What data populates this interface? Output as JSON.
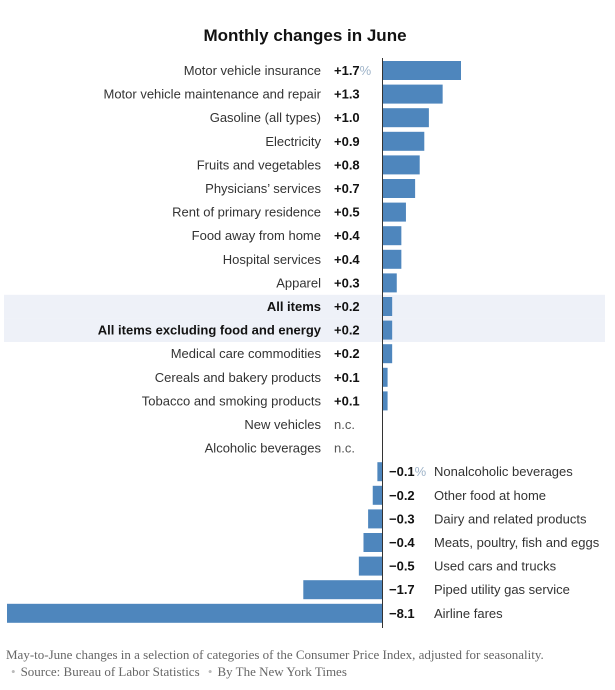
{
  "chart_data": {
    "type": "bar",
    "orientation": "horizontal",
    "title": "Monthly changes in June",
    "unit_suffix": "%",
    "bar_color": "#4e86bd",
    "highlight_color": "#eef1f8",
    "rows": [
      {
        "label": "Motor vehicle insurance",
        "value": 1.7,
        "display": "+1.7",
        "bold": false,
        "highlight": false
      },
      {
        "label": "Motor vehicle maintenance and repair",
        "value": 1.3,
        "display": "+1.3",
        "bold": false,
        "highlight": false
      },
      {
        "label": "Gasoline (all types)",
        "value": 1.0,
        "display": "+1.0",
        "bold": false,
        "highlight": false
      },
      {
        "label": "Electricity",
        "value": 0.9,
        "display": "+0.9",
        "bold": false,
        "highlight": false
      },
      {
        "label": "Fruits and vegetables",
        "value": 0.8,
        "display": "+0.8",
        "bold": false,
        "highlight": false
      },
      {
        "label": "Physicians’ services",
        "value": 0.7,
        "display": "+0.7",
        "bold": false,
        "highlight": false
      },
      {
        "label": "Rent of primary residence",
        "value": 0.5,
        "display": "+0.5",
        "bold": false,
        "highlight": false
      },
      {
        "label": "Food away from home",
        "value": 0.4,
        "display": "+0.4",
        "bold": false,
        "highlight": false
      },
      {
        "label": "Hospital services",
        "value": 0.4,
        "display": "+0.4",
        "bold": false,
        "highlight": false
      },
      {
        "label": "Apparel",
        "value": 0.3,
        "display": "+0.3",
        "bold": false,
        "highlight": false
      },
      {
        "label": "All items",
        "value": 0.2,
        "display": "+0.2",
        "bold": true,
        "highlight": true
      },
      {
        "label": "All items excluding food and energy",
        "value": 0.2,
        "display": "+0.2",
        "bold": true,
        "highlight": true
      },
      {
        "label": "Medical care commodities",
        "value": 0.2,
        "display": "+0.2",
        "bold": false,
        "highlight": false
      },
      {
        "label": "Cereals and bakery products",
        "value": 0.1,
        "display": "+0.1",
        "bold": false,
        "highlight": false
      },
      {
        "label": "Tobacco and smoking products",
        "value": 0.1,
        "display": "+0.1",
        "bold": false,
        "highlight": false
      },
      {
        "label": "New vehicles",
        "value": 0,
        "display": "n.c.",
        "bold": false,
        "highlight": false
      },
      {
        "label": "Alcoholic beverages",
        "value": 0,
        "display": "n.c.",
        "bold": false,
        "highlight": false
      },
      {
        "label": "Nonalcoholic beverages",
        "value": -0.1,
        "display": "−0.1",
        "bold": false,
        "highlight": false
      },
      {
        "label": "Other food at home",
        "value": -0.2,
        "display": "−0.2",
        "bold": false,
        "highlight": false
      },
      {
        "label": "Dairy and related products",
        "value": -0.3,
        "display": "−0.3",
        "bold": false,
        "highlight": false
      },
      {
        "label": "Meats, poultry, fish and eggs",
        "value": -0.4,
        "display": "−0.4",
        "bold": false,
        "highlight": false
      },
      {
        "label": "Used cars and trucks",
        "value": -0.5,
        "display": "−0.5",
        "bold": false,
        "highlight": false
      },
      {
        "label": "Piped utility gas service",
        "value": -1.7,
        "display": "−1.7",
        "bold": false,
        "highlight": false
      },
      {
        "label": "Airline fares",
        "value": -8.1,
        "display": "−8.1",
        "bold": false,
        "highlight": false
      }
    ]
  },
  "footer": {
    "description": "May-to-June changes in a selection of categories of the Consumer Price Index, adjusted for seasonality.",
    "source": "Source: Bureau of Labor Statistics",
    "credit": "By The New York Times"
  }
}
